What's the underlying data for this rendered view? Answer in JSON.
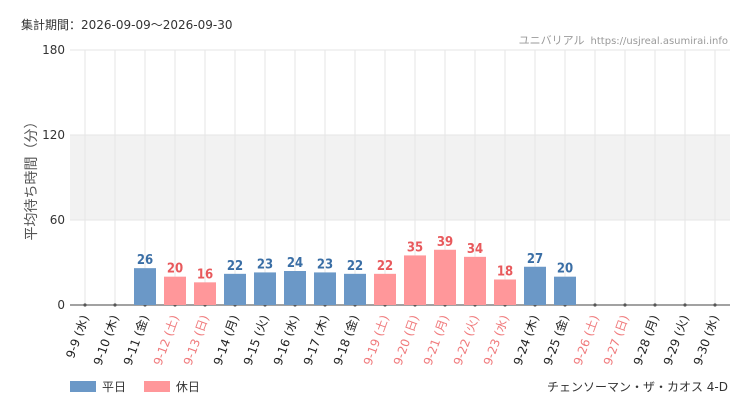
{
  "header": {
    "period_label": "集計期間：2026-09-09～2026-09-30",
    "brand": "ユニバリアル",
    "site": "https://usjreal.asumirai.info"
  },
  "footer": {
    "attraction": "チェンソーマン・ザ・カオス 4-D"
  },
  "colors": {
    "weekday": "#6b98c7",
    "holiday": "#ff979a",
    "weekday_label": "#3a6ea5",
    "holiday_label": "#e8595c",
    "holiday_tick": "#f07a7c",
    "band": "#f2f2f2",
    "grid": "#e6e6e6"
  },
  "chart_data": {
    "type": "bar",
    "ylabel": "平均待ち時間（分）",
    "ylim": [
      0,
      180
    ],
    "yticks": [
      0,
      60,
      120,
      180
    ],
    "shaded_band": [
      60,
      120
    ],
    "series": [
      {
        "name": "平日",
        "key": "weekday"
      },
      {
        "name": "休日",
        "key": "holiday"
      }
    ],
    "categories": [
      {
        "label": "9-9 (水)",
        "type": "weekday",
        "value": null
      },
      {
        "label": "9-10 (木)",
        "type": "weekday",
        "value": null
      },
      {
        "label": "9-11 (金)",
        "type": "weekday",
        "value": 26
      },
      {
        "label": "9-12 (土)",
        "type": "holiday",
        "value": 20
      },
      {
        "label": "9-13 (日)",
        "type": "holiday",
        "value": 16
      },
      {
        "label": "9-14 (月)",
        "type": "weekday",
        "value": 22
      },
      {
        "label": "9-15 (火)",
        "type": "weekday",
        "value": 23
      },
      {
        "label": "9-16 (水)",
        "type": "weekday",
        "value": 24
      },
      {
        "label": "9-17 (木)",
        "type": "weekday",
        "value": 23
      },
      {
        "label": "9-18 (金)",
        "type": "weekday",
        "value": 22
      },
      {
        "label": "9-19 (土)",
        "type": "holiday",
        "value": 22
      },
      {
        "label": "9-20 (日)",
        "type": "holiday",
        "value": 35
      },
      {
        "label": "9-21 (月)",
        "type": "holiday",
        "value": 39
      },
      {
        "label": "9-22 (火)",
        "type": "holiday",
        "value": 34
      },
      {
        "label": "9-23 (水)",
        "type": "holiday",
        "value": 18
      },
      {
        "label": "9-24 (木)",
        "type": "weekday",
        "value": 27
      },
      {
        "label": "9-25 (金)",
        "type": "weekday",
        "value": 20
      },
      {
        "label": "9-26 (土)",
        "type": "holiday",
        "value": null
      },
      {
        "label": "9-27 (日)",
        "type": "holiday",
        "value": null
      },
      {
        "label": "9-28 (月)",
        "type": "weekday",
        "value": null
      },
      {
        "label": "9-29 (火)",
        "type": "weekday",
        "value": null
      },
      {
        "label": "9-30 (水)",
        "type": "weekday",
        "value": null
      }
    ]
  }
}
